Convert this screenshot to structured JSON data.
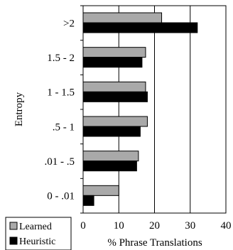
{
  "chart_data": {
    "type": "bar",
    "orientation": "horizontal",
    "categories": [
      ">2",
      "1.5 - 2",
      "1 - 1.5",
      ".5 - 1",
      ".01 - .5",
      "0 - .01"
    ],
    "series": [
      {
        "name": "Learned",
        "color": "#a9a9a9",
        "values": [
          22,
          17.5,
          17.5,
          18,
          15.5,
          10
        ]
      },
      {
        "name": "Heuristic",
        "color": "#000000",
        "values": [
          32,
          16.5,
          18,
          16,
          15,
          3
        ]
      }
    ],
    "xlabel": "% Phrase Translations",
    "ylabel": "Entropy",
    "xlim": [
      0,
      40
    ],
    "xticks": [
      "0",
      "10",
      "20",
      "30",
      "40"
    ],
    "grid": "vertical",
    "legend": "bottom-left"
  }
}
